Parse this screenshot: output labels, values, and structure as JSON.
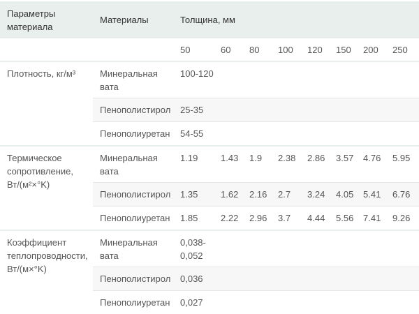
{
  "header": {
    "param": "Параметры материала",
    "materials": "Материалы",
    "thickness": "Толщина, мм"
  },
  "thicknesses": [
    "50",
    "60",
    "80",
    "100",
    "120",
    "150",
    "200",
    "250"
  ],
  "groups": [
    {
      "param": "Плотность, кг/м³",
      "rows": [
        {
          "material": "Минеральная вата",
          "values": [
            "100-120"
          ]
        },
        {
          "material": "Пенополистирол",
          "values": [
            "25-35"
          ]
        },
        {
          "material": "Пенополиуретан",
          "values": [
            "54-55"
          ]
        }
      ]
    },
    {
      "param": "Термическое сопротивление, Вт/(м²×°K)",
      "rows": [
        {
          "material": "Минеральная вата",
          "values": [
            "1.19",
            "1.43",
            "1.9",
            "2.38",
            "2.86",
            "3.57",
            "4.76",
            "5.95"
          ]
        },
        {
          "material": "Пенополистирол",
          "values": [
            "1.35",
            "1.62",
            "2.16",
            "2.7",
            "3.24",
            "4.05",
            "5.41",
            "6.76"
          ]
        },
        {
          "material": "Пенополиуретан",
          "values": [
            "1.85",
            "2.22",
            "2.96",
            "3.7",
            "4.44",
            "5.56",
            "7.41",
            "9.26"
          ]
        }
      ]
    },
    {
      "param": "Коэффициент теплопроводности, Вт/(м×°K)",
      "rows": [
        {
          "material": "Минеральная вата",
          "values": [
            "0,038-0,052"
          ]
        },
        {
          "material": "Пенополистирол",
          "values": [
            "0,036"
          ]
        },
        {
          "material": "Пенополиуретан",
          "values": [
            "0,027"
          ]
        }
      ]
    }
  ]
}
